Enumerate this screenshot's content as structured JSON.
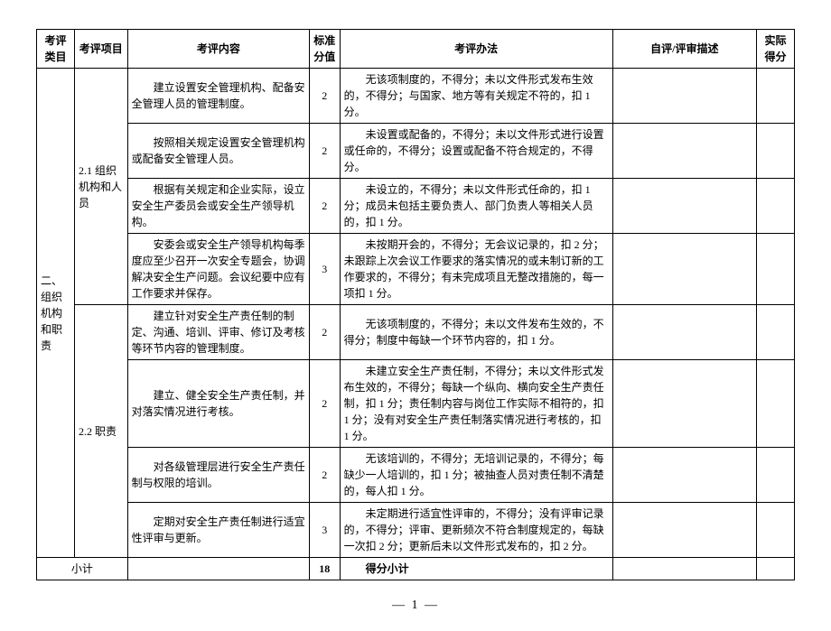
{
  "columns": {
    "category": "考评类目",
    "item": "考评项目",
    "content": "考评内容",
    "std_score": "标准分值",
    "method": "考评办法",
    "self_desc": "自评/评审描述",
    "actual_score": "实际得分"
  },
  "col_widths": {
    "category": "5%",
    "item": "7%",
    "content": "24%",
    "std_score": "4%",
    "method": "36%",
    "self_desc": "19%",
    "actual_score": "5%"
  },
  "category": "二、组织机构和职责",
  "items": [
    {
      "name": "2.1 组织机构和人员",
      "rows": [
        {
          "content": "建立设置安全管理机构、配备安全管理人员的管理制度。",
          "score": 2,
          "method": "无该项制度的，不得分；未以文件形式发布生效的，不得分；与国家、地方等有关规定不符的，扣 1 分。"
        },
        {
          "content": "按照相关规定设置安全管理机构或配备安全管理人员。",
          "score": 2,
          "method": "未设置或配备的，不得分；未以文件形式进行设置或任命的，不得分；设置或配备不符合规定的，不得分。"
        },
        {
          "content": "根据有关规定和企业实际，设立安全生产委员会或安全生产领导机构。",
          "score": 2,
          "method": "未设立的，不得分；未以文件形式任命的，扣 1 分；成员未包括主要负责人、部门负责人等相关人员的，扣 1 分。"
        },
        {
          "content": "安委会或安全生产领导机构每季度应至少召开一次安全专题会，协调解决安全生产问题。会议纪要中应有工作要求并保存。",
          "score": 3,
          "method": "未按期开会的，不得分；无会议记录的，扣 2 分；未跟踪上次会议工作要求的落实情况的或未制订新的工作要求的，不得分；有未完成项且无整改措施的，每一项扣 1 分。"
        }
      ]
    },
    {
      "name": "2.2 职责",
      "rows": [
        {
          "content": "建立针对安全生产责任制的制定、沟通、培训、评审、修订及考核等环节内容的管理制度。",
          "score": 2,
          "method": "无该项制度的，不得分；未以文件发布生效的，不得分；制度中每缺一个环节内容的，扣 1 分。"
        },
        {
          "content": "建立、健全安全生产责任制，并对落实情况进行考核。",
          "score": 2,
          "method": "未建立安全生产责任制，不得分；未以文件形式发布生效的，不得分；每缺一个纵向、横向安全生产责任制，扣 1 分；责任制内容与岗位工作实际不相符的，扣 1 分；没有对安全生产责任制落实情况进行考核的，扣 1 分。"
        },
        {
          "content": "对各级管理层进行安全生产责任制与权限的培训。",
          "score": 2,
          "method": "无该培训的，不得分；无培训记录的，不得分；每缺少一人培训的，扣 1 分；被抽查人员对责任制不清楚的，每人扣 1 分。"
        },
        {
          "content": "定期对安全生产责任制进行适宜性评审与更新。",
          "score": 3,
          "method": "未定期进行适宜性评审的，不得分；没有评审记录的，不得分；评审、更新频次不符合制度规定的，每缺一次扣 2 分；更新后未以文件形式发布的，扣 2 分。"
        }
      ]
    }
  ],
  "subtotal": {
    "label": "小计",
    "score": 18,
    "method_label": "得分小计"
  },
  "page_number": "— 1 —"
}
